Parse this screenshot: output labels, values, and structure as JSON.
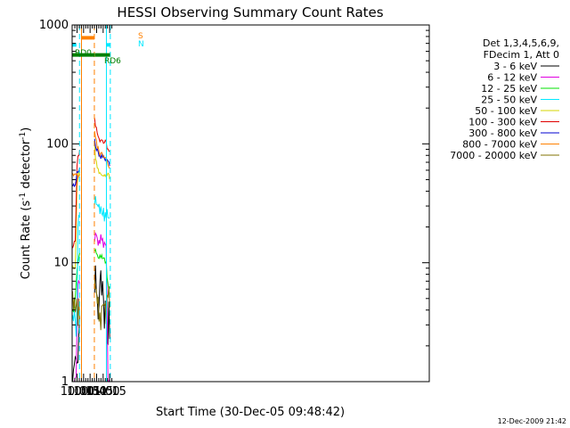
{
  "chart_data": {
    "type": "line",
    "title": "HESSI Observing Summary Count Rates",
    "xlabel": "Start Time (30-Dec-05 09:48:42)",
    "ylabel_main": "Count Rate (s",
    "ylabel_sup1": "-1",
    "ylabel_mid": " detector",
    "ylabel_sup2": "-1",
    "ylabel_end": ")",
    "yscale": "log",
    "xlim": [
      588.7,
      1410
    ],
    "ylim": [
      1,
      1000
    ],
    "x_ticks": [
      {
        "value": 600,
        "label": "10:00"
      },
      {
        "value": 615,
        "label": "10:15"
      },
      {
        "value": 630,
        "label": "10:30"
      },
      {
        "value": 645,
        "label": "10:45"
      },
      {
        "value": 660,
        "label": "11:00"
      },
      {
        "value": 675,
        "label": "11:15"
      }
    ],
    "y_ticks": [
      {
        "value": 1,
        "label": "1"
      },
      {
        "value": 10,
        "label": "10"
      },
      {
        "value": 100,
        "label": "100"
      },
      {
        "value": 1000,
        "label": "1000"
      }
    ],
    "legend": {
      "placement": "right",
      "header_lines": [
        "Det 1,3,4,5,6,9,",
        "FDecim 1, Att 0"
      ],
      "entries": [
        {
          "label": "3 - 6 keV",
          "color": "#000000"
        },
        {
          "label": "6 - 12 keV",
          "color": "#e000e0"
        },
        {
          "label": "12 - 25 keV",
          "color": "#00e000"
        },
        {
          "label": "25 - 50 keV",
          "color": "#00e8ff"
        },
        {
          "label": "50 - 100 keV",
          "color": "#d4d400"
        },
        {
          "label": "100 - 300 keV",
          "color": "#e00000"
        },
        {
          "label": "300 - 800 keV",
          "color": "#0000d0"
        },
        {
          "label": "800 - 7000 keV",
          "color": "#ff8000"
        },
        {
          "label": "7000 - 20000 keV",
          "color": "#807000"
        }
      ]
    },
    "flags": {
      "rd0_label": "RD0",
      "rd6_label": "RD6",
      "saa_label": "S",
      "night_label": "N",
      "rd0": {
        "color": "#00e8ff",
        "y": 680,
        "segments": [
          [
            588.7,
            598.5
          ],
          [
            667.5,
            676.5
          ]
        ]
      },
      "rd6": {
        "color": "#008000",
        "y": 560,
        "segments": [
          [
            588.7,
            640.5
          ],
          [
            641.2,
            675.8
          ]
        ]
      },
      "saa": {
        "color": "#ff8000",
        "y": 780,
        "segments": [
          [
            610.2,
            639.8
          ]
        ]
      }
    },
    "vlines": [
      {
        "x": 588.7,
        "color": "#00e8ff",
        "style": "solid"
      },
      {
        "x": 605.6,
        "color": "#00e8ff",
        "style": "dashed"
      },
      {
        "x": 610.2,
        "color": "#ff8000",
        "style": "solid"
      },
      {
        "x": 639.8,
        "color": "#ff8000",
        "style": "dashed"
      },
      {
        "x": 667.5,
        "color": "#00e8ff",
        "style": "solid"
      },
      {
        "x": 676.5,
        "color": "#00e8ff",
        "style": "dashed"
      }
    ],
    "segments": [
      [
        588.7,
        607.3
      ],
      [
        640.3,
        677.1
      ]
    ],
    "series": [
      {
        "name": "3 - 6 keV",
        "color": "#000000",
        "points": [
          [
            588.7,
            1.2
          ],
          [
            592.0,
            1.0
          ],
          [
            596.0,
            1.0
          ],
          [
            600.5,
            1.0
          ],
          [
            604.0,
            1.8
          ],
          [
            606.5,
            2.6
          ],
          [
            607.3,
            5.0
          ],
          [
            640.3,
            8.0
          ],
          [
            642.0,
            6.0
          ],
          [
            645.0,
            4.0
          ],
          [
            648.0,
            3.5
          ],
          [
            651.0,
            3.6
          ],
          [
            654.0,
            6.0
          ],
          [
            656.0,
            9.0
          ],
          [
            657.5,
            7.0
          ],
          [
            659.0,
            3.8
          ],
          [
            662.5,
            3.0
          ],
          [
            665.5,
            3.1
          ],
          [
            668.0,
            3.0
          ],
          [
            670.0,
            3.5
          ],
          [
            677.1,
            3.0
          ]
        ]
      },
      {
        "name": "6 - 12 keV",
        "color": "#e000e0",
        "points": [
          [
            588.7,
            1.0
          ],
          [
            595.0,
            1.0
          ],
          [
            599.0,
            1.0
          ],
          [
            600.5,
            6.0
          ],
          [
            604.0,
            7.0
          ],
          [
            606.5,
            7.0
          ],
          [
            607.3,
            16.0
          ],
          [
            640.3,
            16.0
          ],
          [
            642.0,
            16.5
          ],
          [
            645.0,
            15.5
          ],
          [
            648.0,
            15.0
          ],
          [
            651.0,
            14.5
          ],
          [
            654.0,
            15.0
          ],
          [
            655.5,
            18.0
          ],
          [
            657.0,
            15.0
          ],
          [
            660.0,
            14.0
          ],
          [
            662.5,
            15.0
          ],
          [
            665.5,
            14.0
          ],
          [
            667.5,
            13.0
          ],
          [
            669.5,
            3.0
          ],
          [
            671.0,
            1.1
          ],
          [
            677.1,
            1.0
          ]
        ]
      },
      {
        "name": "12 - 25 keV",
        "color": "#00e000",
        "points": [
          [
            588.7,
            4.0
          ],
          [
            592.0,
            4.0
          ],
          [
            596.0,
            5.0
          ],
          [
            600.5,
            9.0
          ],
          [
            604.0,
            11.0
          ],
          [
            606.5,
            12.0
          ],
          [
            607.3,
            26.0
          ],
          [
            640.3,
            13.0
          ],
          [
            642.0,
            12.5
          ],
          [
            645.0,
            12.0
          ],
          [
            648.0,
            11.5
          ],
          [
            651.0,
            11.0
          ],
          [
            654.0,
            11.0
          ],
          [
            657.0,
            11.0
          ],
          [
            660.0,
            10.5
          ],
          [
            662.5,
            10.5
          ],
          [
            665.5,
            10.5
          ],
          [
            667.5,
            10.5
          ],
          [
            669.5,
            6.5
          ],
          [
            677.1,
            6.0
          ]
        ]
      },
      {
        "name": "25 - 50 keV",
        "color": "#00e8ff",
        "points": [
          [
            588.7,
            3.5
          ],
          [
            592.0,
            3.5
          ],
          [
            596.0,
            3.5
          ],
          [
            597.8,
            3.0
          ],
          [
            598.5,
            1.3
          ],
          [
            599.5,
            1.2
          ],
          [
            600.5,
            20.0
          ],
          [
            604.0,
            22.0
          ],
          [
            606.5,
            24.0
          ],
          [
            607.3,
            36.0
          ],
          [
            640.3,
            35.0
          ],
          [
            642.0,
            32.0
          ],
          [
            645.0,
            30.0
          ],
          [
            648.0,
            28.5
          ],
          [
            651.0,
            27.0
          ],
          [
            654.0,
            26.5
          ],
          [
            657.0,
            26.0
          ],
          [
            660.0,
            25.5
          ],
          [
            662.5,
            25.0
          ],
          [
            667.5,
            25.0
          ],
          [
            669.5,
            24.5
          ],
          [
            677.1,
            24.0
          ]
        ]
      },
      {
        "name": "50 - 100 keV",
        "color": "#d4d400",
        "points": [
          [
            588.7,
            9.0
          ],
          [
            592.0,
            9.0
          ],
          [
            596.0,
            9.0
          ],
          [
            600.5,
            55.0
          ],
          [
            604.0,
            56.0
          ],
          [
            606.5,
            57.0
          ],
          [
            607.3,
            65.0
          ],
          [
            640.3,
            95.0
          ],
          [
            642.0,
            78.0
          ],
          [
            645.0,
            68.0
          ],
          [
            648.0,
            62.0
          ],
          [
            651.0,
            59.0
          ],
          [
            654.0,
            57.0
          ],
          [
            657.0,
            56.0
          ],
          [
            660.0,
            56.0
          ],
          [
            662.5,
            56.0
          ],
          [
            667.5,
            55.0
          ],
          [
            669.5,
            54.0
          ],
          [
            677.1,
            53.0
          ]
        ]
      },
      {
        "name": "100 - 300 keV",
        "color": "#e00000",
        "points": [
          [
            588.7,
            14.0
          ],
          [
            592.0,
            14.0
          ],
          [
            596.0,
            15.0
          ],
          [
            600.5,
            78.0
          ],
          [
            604.0,
            82.0
          ],
          [
            606.5,
            85.0
          ],
          [
            607.3,
            140.0
          ],
          [
            640.3,
            160.0
          ],
          [
            642.0,
            145.0
          ],
          [
            645.0,
            130.0
          ],
          [
            648.0,
            120.0
          ],
          [
            651.0,
            112.0
          ],
          [
            654.0,
            108.0
          ],
          [
            657.0,
            106.0
          ],
          [
            660.0,
            105.0
          ],
          [
            662.5,
            106.0
          ],
          [
            667.5,
            105.0
          ],
          [
            669.5,
            92.0
          ],
          [
            677.1,
            88.0
          ]
        ]
      },
      {
        "name": "300 - 800 keV",
        "color": "#0000d0",
        "points": [
          [
            588.7,
            47.0
          ],
          [
            592.0,
            45.0
          ],
          [
            596.0,
            44.0
          ],
          [
            600.5,
            58.0
          ],
          [
            604.0,
            60.0
          ],
          [
            606.5,
            62.0
          ],
          [
            607.3,
            72.0
          ],
          [
            640.3,
            110.0
          ],
          [
            642.0,
            100.0
          ],
          [
            645.0,
            90.0
          ],
          [
            648.0,
            84.0
          ],
          [
            651.0,
            80.0
          ],
          [
            654.0,
            78.0
          ],
          [
            657.0,
            77.0
          ],
          [
            660.0,
            76.0
          ],
          [
            662.5,
            76.0
          ],
          [
            667.5,
            75.0
          ],
          [
            669.5,
            70.0
          ],
          [
            677.1,
            66.0
          ]
        ]
      },
      {
        "name": "800 - 7000 keV",
        "color": "#ff8000",
        "points": [
          [
            588.7,
            60.0
          ],
          [
            592.0,
            56.0
          ],
          [
            596.0,
            54.0
          ],
          [
            600.5,
            54.0
          ],
          [
            604.0,
            55.0
          ],
          [
            606.5,
            56.0
          ],
          [
            607.3,
            62.0
          ],
          [
            640.3,
            125.0
          ],
          [
            642.0,
            112.0
          ],
          [
            645.0,
            100.0
          ],
          [
            648.0,
            92.0
          ],
          [
            651.0,
            86.0
          ],
          [
            654.0,
            82.0
          ],
          [
            657.0,
            80.0
          ],
          [
            660.0,
            79.0
          ],
          [
            662.5,
            78.0
          ],
          [
            667.5,
            76.0
          ],
          [
            669.5,
            68.0
          ],
          [
            677.1,
            62.0
          ]
        ]
      },
      {
        "name": "7000 - 20000 keV",
        "color": "#807000",
        "points": [
          [
            588.7,
            7.0
          ],
          [
            590.5,
            5.5
          ],
          [
            592.0,
            4.8
          ],
          [
            596.0,
            4.5
          ],
          [
            600.5,
            4.0
          ],
          [
            604.0,
            4.0
          ],
          [
            606.5,
            3.8
          ],
          [
            607.3,
            4.0
          ],
          [
            640.3,
            8.0
          ],
          [
            642.0,
            5.5
          ],
          [
            645.0,
            4.5
          ],
          [
            648.0,
            4.0
          ],
          [
            651.0,
            3.7
          ],
          [
            654.0,
            3.6
          ],
          [
            657.0,
            3.5
          ],
          [
            660.0,
            3.5
          ],
          [
            662.5,
            3.6
          ],
          [
            665.5,
            3.8
          ],
          [
            667.5,
            4.0
          ],
          [
            669.5,
            5.0
          ],
          [
            672.0,
            5.5
          ],
          [
            677.1,
            5.5
          ]
        ]
      }
    ]
  },
  "footer": {
    "timestamp": "12-Dec-2009 21:42"
  }
}
